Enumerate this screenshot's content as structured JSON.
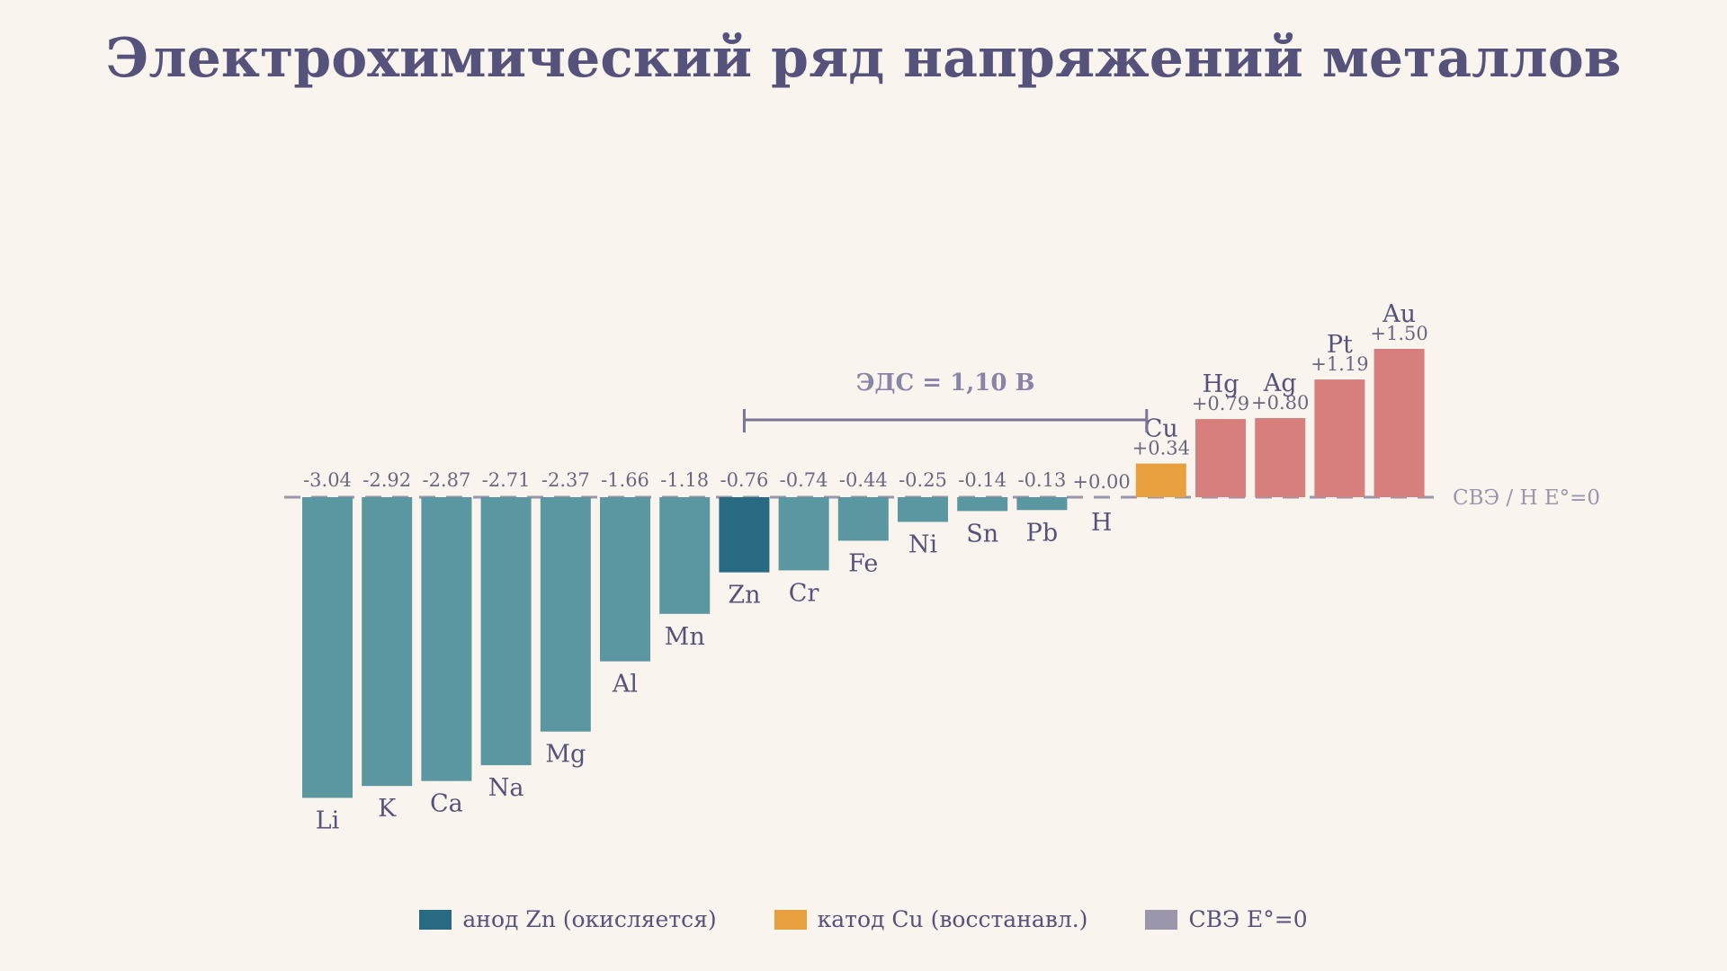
{
  "title": "Электрохимический ряд напряжений металлов",
  "emf_label": "ЭДС = 1,10 В",
  "reference_label": "СВЭ / H  E°=0",
  "colors": {
    "negative": "#5a97a0",
    "anode": "#276a82",
    "cathode": "#e8a03e",
    "positive": "#d77f7c",
    "reference": "#9a97ad",
    "text": "#55537c"
  },
  "legend": [
    {
      "label": "анод Zn (окисляется)",
      "color": "#276a82"
    },
    {
      "label": "катод Cu (восстанавл.)",
      "color": "#e8a03e"
    },
    {
      "label": "СВЭ  E°=0",
      "color": "#9a97ad"
    }
  ],
  "chart_data": {
    "type": "bar",
    "title": "Электрохимический ряд напряжений металлов",
    "xlabel": "",
    "ylabel": "",
    "ylim": [
      -3.04,
      1.5
    ],
    "categories": [
      "Li",
      "K",
      "Ca",
      "Na",
      "Mg",
      "Al",
      "Mn",
      "Zn",
      "Cr",
      "Fe",
      "Ni",
      "Sn",
      "Pb",
      "H",
      "Cu",
      "Hg",
      "Ag",
      "Pt",
      "Au"
    ],
    "values": [
      -3.04,
      -2.92,
      -2.87,
      -2.71,
      -2.37,
      -1.66,
      -1.18,
      -0.76,
      -0.74,
      -0.44,
      -0.25,
      -0.14,
      -0.13,
      0.0,
      0.34,
      0.79,
      0.8,
      1.19,
      1.5
    ],
    "value_labels": [
      "-3.04",
      "-2.92",
      "-2.87",
      "-2.71",
      "-2.37",
      "-1.66",
      "-1.18",
      "-0.76",
      "-0.74",
      "-0.44",
      "-0.25",
      "-0.14",
      "-0.13",
      "+0.00",
      "+0.34",
      "+0.79",
      "+0.80",
      "+1.19",
      "+1.50"
    ],
    "roles": [
      "negative",
      "negative",
      "negative",
      "negative",
      "negative",
      "negative",
      "negative",
      "anode",
      "negative",
      "negative",
      "negative",
      "negative",
      "negative",
      "reference",
      "cathode",
      "positive",
      "positive",
      "positive",
      "positive"
    ],
    "emf_from": "Zn",
    "emf_to": "Cu",
    "reference_value": 0
  }
}
